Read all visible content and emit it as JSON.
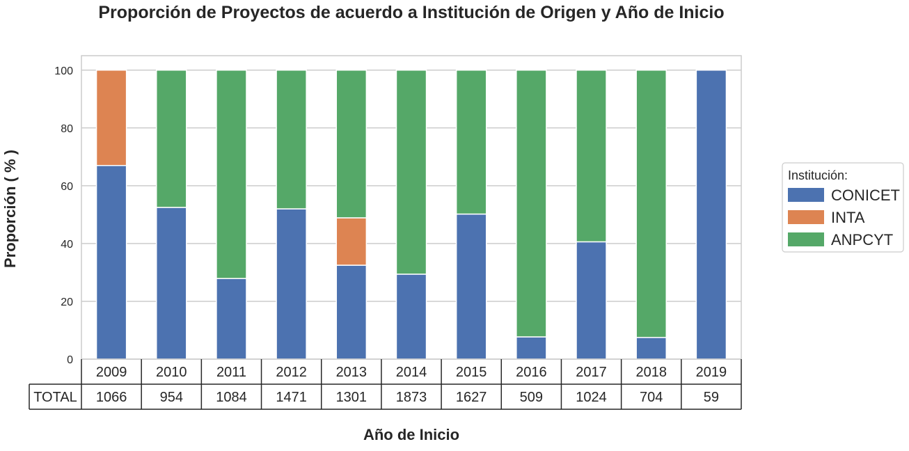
{
  "colors": {
    "CONICET": "#4c72b0",
    "INTA": "#dd8452",
    "ANPCYT": "#55a868",
    "grid": "#cccccc",
    "axes_edge": "#cccccc",
    "table_edge": "#262626"
  },
  "chart_data": {
    "type": "bar",
    "stacked": true,
    "title": "Proporción de Proyectos de acuerdo a  Institución de Origen  y  Año de Inicio",
    "xlabel": "Año de Inicio",
    "ylabel": "Proporción  ( % )",
    "ylim": [
      0,
      105
    ],
    "yticks": [
      0,
      20,
      40,
      60,
      80,
      100
    ],
    "grid": true,
    "categories": [
      "2009",
      "2010",
      "2011",
      "2012",
      "2013",
      "2014",
      "2015",
      "2016",
      "2017",
      "2018",
      "2019"
    ],
    "series": [
      {
        "name": "CONICET",
        "values": [
          67.0,
          52.5,
          27.9,
          52.0,
          32.5,
          29.4,
          50.2,
          7.7,
          40.6,
          7.5,
          100.0
        ]
      },
      {
        "name": "INTA",
        "values": [
          33.0,
          0,
          0,
          0,
          16.4,
          0,
          0,
          0,
          0,
          0,
          0
        ]
      },
      {
        "name": "ANPCYT",
        "values": [
          0,
          47.5,
          72.1,
          48.0,
          51.1,
          70.6,
          49.8,
          92.3,
          59.4,
          92.5,
          0
        ]
      }
    ],
    "table": {
      "row_label": "TOTAL",
      "values": [
        "1066",
        "954",
        "1084",
        "1471",
        "1301",
        "1873",
        "1627",
        "509",
        "1024",
        "704",
        "59"
      ]
    },
    "legend": {
      "title": "Institución:",
      "placement": "right",
      "entries": [
        "CONICET",
        "INTA",
        "ANPCYT"
      ]
    }
  }
}
